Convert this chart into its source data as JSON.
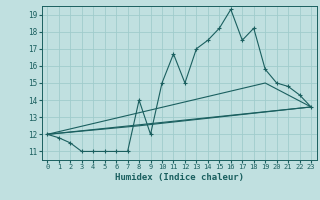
{
  "xlabel": "Humidex (Indice chaleur)",
  "ylabel": "",
  "background_color": "#c0e0e0",
  "grid_color": "#a0cccc",
  "line_color": "#1a5f5f",
  "spine_color": "#1a5f5f",
  "xlim": [
    -0.5,
    23.5
  ],
  "ylim": [
    10.5,
    19.5
  ],
  "yticks": [
    11,
    12,
    13,
    14,
    15,
    16,
    17,
    18,
    19
  ],
  "xticks": [
    0,
    1,
    2,
    3,
    4,
    5,
    6,
    7,
    8,
    9,
    10,
    11,
    12,
    13,
    14,
    15,
    16,
    17,
    18,
    19,
    20,
    21,
    22,
    23
  ],
  "series1_x": [
    0,
    1,
    2,
    3,
    4,
    5,
    6,
    7,
    8,
    9,
    10,
    11,
    12,
    13,
    14,
    15,
    16,
    17,
    18,
    19,
    20,
    21,
    22,
    23
  ],
  "series1_y": [
    12,
    11.8,
    11.5,
    11.0,
    11.0,
    11.0,
    11.0,
    11.0,
    14.0,
    12.0,
    15.0,
    16.7,
    15.0,
    17.0,
    17.5,
    18.2,
    19.3,
    17.5,
    18.2,
    15.8,
    15.0,
    14.8,
    14.3,
    13.6
  ],
  "series2_x": [
    0,
    23
  ],
  "series2_y": [
    12,
    13.6
  ],
  "series3_x": [
    0,
    8,
    23
  ],
  "series3_y": [
    12,
    12.5,
    13.6
  ],
  "series4_x": [
    0,
    19,
    23
  ],
  "series4_y": [
    12,
    15.0,
    13.6
  ]
}
